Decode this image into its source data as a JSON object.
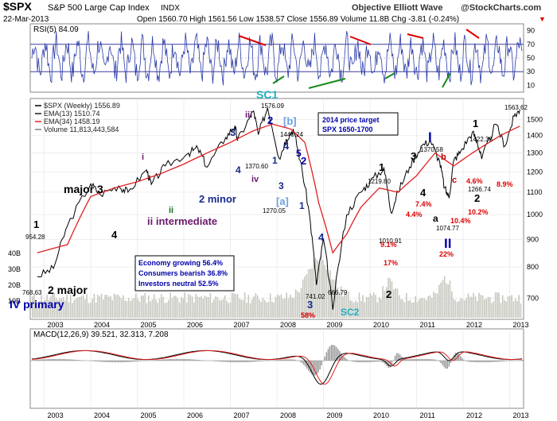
{
  "header": {
    "symbol": "$SPX",
    "description": "S&P 500 Large Cap Index",
    "exchange": "INDX",
    "date": "22-Mar-2013",
    "credit": "Objective Elliott Wave",
    "source": "@StockCharts.com",
    "quote": "Open 1560.70  High 1561.56  Low 1538.57  Close 1556.89  Volume 11.8B  Chg -3.81 (-0.24%)",
    "quote_arrow": "▼"
  },
  "rsi_panel": {
    "label": "RSI(5) 84.09",
    "ticks": [
      90,
      70,
      50,
      30,
      10
    ]
  },
  "price_panel": {
    "legend": [
      {
        "text": "$SPX (Weekly) 1556.89",
        "color": "#000000"
      },
      {
        "text": "EMA(13) 1510.74",
        "color": "#1a1a1a"
      },
      {
        "text": "EMA(34) 1458.19",
        "color": "#e02020"
      },
      {
        "text": "Volume 11,813,443,584",
        "color": "#808080"
      }
    ],
    "y_ticks": [
      1500,
      1400,
      1300,
      1200,
      1100,
      1000,
      900,
      800,
      700
    ],
    "vol_ticks": [
      "40B",
      "30B",
      "20B",
      "10B"
    ],
    "box_target": [
      "2014 price target",
      "SPX 1650-1700"
    ],
    "box_stats": [
      "Economy growing 56.4%",
      "Consumers bearish 36.8%",
      "Investors neutral 52.5%"
    ]
  },
  "macd_panel": {
    "label": "MACD(12,26,9) 39.521, 32.313, 7.208"
  },
  "x_labels": [
    "2003",
    "2004",
    "2005",
    "2006",
    "2007",
    "2008",
    "2009",
    "2010",
    "2011",
    "2012",
    "2013"
  ],
  "chart_data": {
    "type": "line",
    "title": "$SPX S&P 500 Large Cap Index INDX",
    "series": [
      {
        "name": "$SPX (Weekly)",
        "x": [
          2002.85,
          2003.2,
          2003.5,
          2004.0,
          2004.2,
          2004.6,
          2004.8,
          2005.2,
          2005.3,
          2005.6,
          2006.1,
          2006.3,
          2006.5,
          2006.9,
          2007.1,
          2007.15,
          2007.5,
          2007.6,
          2007.8,
          2008.05,
          2008.2,
          2008.35,
          2008.5,
          2008.7,
          2008.85,
          2009.0,
          2009.2,
          2009.5,
          2009.8,
          2010.0,
          2010.3,
          2010.45,
          2010.6,
          2010.85,
          2011.1,
          2011.3,
          2011.5,
          2011.6,
          2011.7,
          2011.8,
          2011.95,
          2012.2,
          2012.3,
          2012.4,
          2012.7,
          2012.9,
          2013.1,
          2013.22
        ],
        "y": [
          768,
          795,
          954,
          1140,
          1090,
          1130,
          1100,
          1210,
          1137,
          1230,
          1300,
          1327,
          1224,
          1390,
          1460,
          1370,
          1555,
          1406,
          1576,
          1270,
          1380,
          1440,
          1260,
          1000,
          741,
          900,
          667,
          1000,
          1100,
          1150,
          1220,
          1010,
          1100,
          1225,
          1340,
          1370,
          1250,
          1120,
          1075,
          1260,
          1310,
          1422,
          1370,
          1267,
          1470,
          1340,
          1520,
          1563
        ]
      },
      {
        "name": "EMA(34)",
        "x": [
          2002.85,
          2003.5,
          2004.0,
          2004.5,
          2005.0,
          2005.5,
          2006.0,
          2006.5,
          2007.0,
          2007.5,
          2007.9,
          2008.3,
          2008.6,
          2008.9,
          2009.2,
          2009.5,
          2009.8,
          2010.2,
          2010.6,
          2011.0,
          2011.4,
          2011.8,
          2012.2,
          2012.5,
          2012.8,
          2013.22
        ],
        "y": [
          850,
          880,
          1080,
          1120,
          1150,
          1190,
          1240,
          1300,
          1360,
          1430,
          1470,
          1440,
          1360,
          1050,
          850,
          920,
          1030,
          1120,
          1100,
          1180,
          1300,
          1230,
          1300,
          1350,
          1400,
          1458
        ]
      }
    ],
    "annotations": [
      "SC1",
      "SC2",
      "[b]",
      "[a]",
      "major 3",
      "2 major",
      "IV primary",
      "ii intermediate",
      "2 minor",
      "1",
      "2",
      "3",
      "4",
      "5",
      "i",
      "ii",
      "iii",
      "iv",
      "a",
      "b",
      "c",
      "I",
      "II",
      "954.28",
      "768.63",
      "1576.09",
      "1370.60",
      "1270.05",
      "1440.24",
      "741.02",
      "666.79",
      "1219.80",
      "1010.91",
      "1370.58",
      "1074.77",
      "1422.38",
      "1266.74",
      "1563.62",
      "58%",
      "9.1%",
      "17%",
      "4.4%",
      "7.4%",
      "22%",
      "10.4%",
      "10.2%",
      "4.6%",
      "8.9%"
    ]
  }
}
